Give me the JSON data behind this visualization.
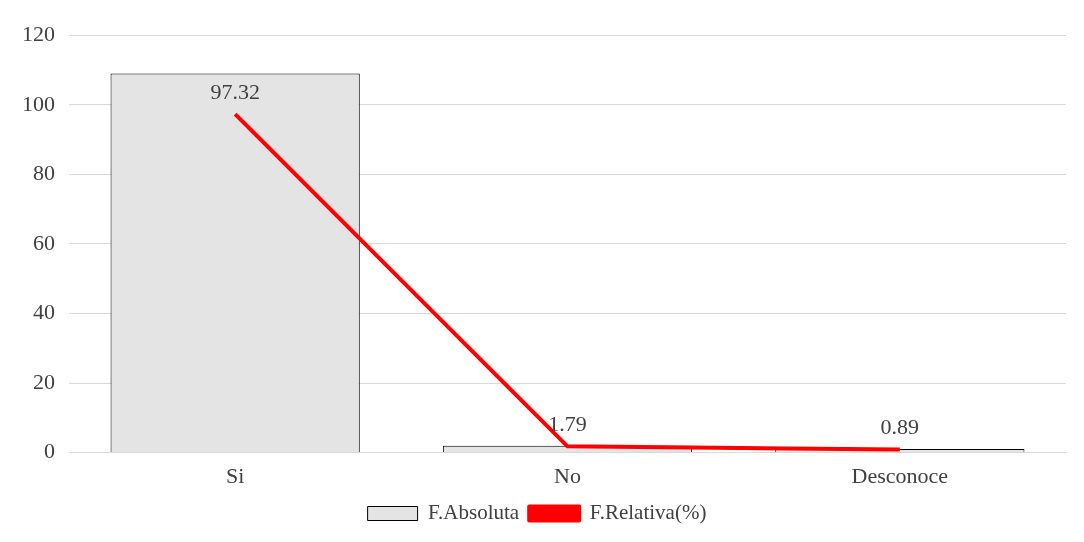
{
  "chart_data": {
    "type": "bar",
    "categories": [
      "Si",
      "No",
      "Desconoce"
    ],
    "series": [
      {
        "name": "F.Absoluta",
        "color": "#e4e4e4",
        "values": [
          109,
          2,
          1
        ]
      },
      {
        "name": "F.Relativa(%)",
        "type": "line",
        "color": "#ff0000",
        "values": [
          97.32,
          1.79,
          0.89
        ],
        "value_labels": [
          "97.32",
          "1.79",
          "0.89"
        ]
      }
    ],
    "ylim": [
      0,
      120
    ],
    "yticks": [
      0,
      20,
      40,
      60,
      80,
      100,
      120
    ],
    "grid": "y",
    "legend": "bottom",
    "marker": "none"
  }
}
